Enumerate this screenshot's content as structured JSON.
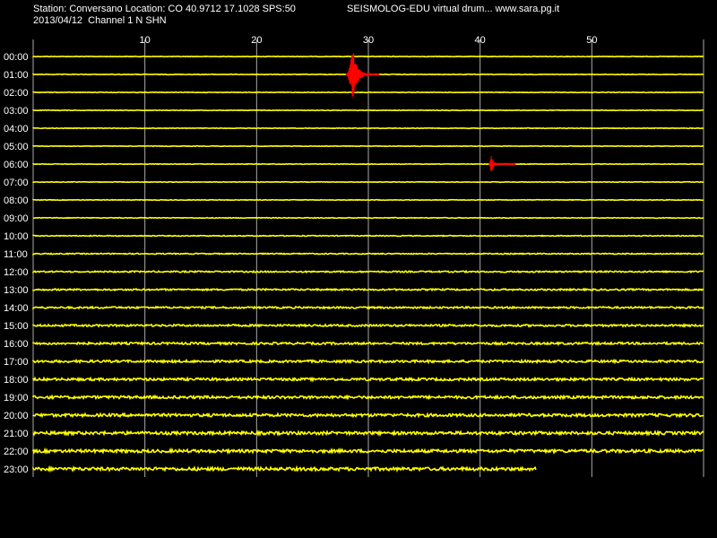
{
  "header": {
    "station_line": "Station: Conversano Location: CO 40.9712 17.1028 SPS:50",
    "date_line": "2013/04/12  Channel 1 N SHN",
    "title_line": "SEISMOLOG-EDU virtual drum... www.sara.pg.it"
  },
  "colors": {
    "background": "#000000",
    "trace": "#ffff00",
    "event": "#ff0000",
    "grid": "#aaaaaa",
    "text": "#ffffff"
  },
  "chart_data": {
    "type": "line",
    "title": "SEISMOLOG-EDU virtual drum... www.sara.pg.it",
    "xlabel": "",
    "ylabel": "",
    "x_ticks": [
      "10",
      "20",
      "30",
      "40",
      "50"
    ],
    "x_tick_values": [
      10,
      20,
      30,
      40,
      50
    ],
    "xlim": [
      0,
      60
    ],
    "grid": true,
    "rows": [
      "00:00",
      "01:00",
      "02:00",
      "03:00",
      "04:00",
      "05:00",
      "06:00",
      "07:00",
      "08:00",
      "09:00",
      "10:00",
      "11:00",
      "12:00",
      "13:00",
      "14:00",
      "15:00",
      "16:00",
      "17:00",
      "18:00",
      "19:00",
      "20:00",
      "21:00",
      "22:00",
      "23:00"
    ],
    "row_noise": [
      0.3,
      0.3,
      0.3,
      0.3,
      0.3,
      0.3,
      0.3,
      0.3,
      0.35,
      0.4,
      0.5,
      0.6,
      0.8,
      0.9,
      1.0,
      1.1,
      1.2,
      1.3,
      1.4,
      1.5,
      1.6,
      1.7,
      1.7,
      1.8
    ],
    "row_end_minute": [
      60,
      60,
      60,
      60,
      60,
      60,
      60,
      60,
      60,
      60,
      60,
      60,
      60,
      60,
      60,
      60,
      60,
      60,
      60,
      60,
      60,
      60,
      60,
      45
    ],
    "events": [
      {
        "row": "01:00",
        "start_minute": 28.0,
        "peak_minute": 28.6,
        "end_minute": 31.0
      },
      {
        "row": "06:00",
        "start_minute": 40.8,
        "peak_minute": 41.0,
        "end_minute": 43.2
      }
    ]
  }
}
